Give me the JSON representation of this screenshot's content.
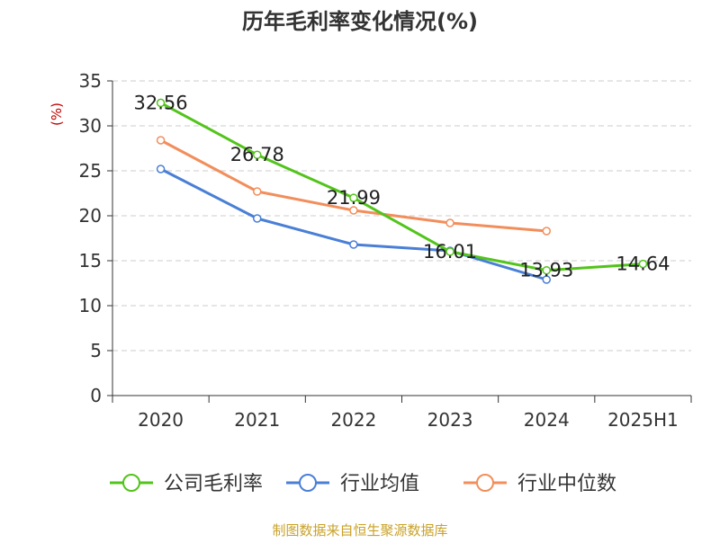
{
  "chart_data": {
    "type": "line",
    "title": "历年毛利率变化情况(%)",
    "ylabel": "(%)",
    "xlabel": "",
    "categories": [
      "2020",
      "2021",
      "2022",
      "2023",
      "2024",
      "2025H1"
    ],
    "ylim": [
      0,
      35
    ],
    "yticks": [
      0,
      5,
      10,
      15,
      20,
      25,
      30,
      35
    ],
    "grid": true,
    "legend_position": "bottom",
    "series": [
      {
        "name": "公司毛利率",
        "color": "#52c41a",
        "values": [
          32.56,
          26.78,
          21.99,
          16.01,
          13.93,
          14.64
        ],
        "labels": [
          "32.56",
          "26.78",
          "21.99",
          "16.01",
          "13.93",
          "14.64"
        ]
      },
      {
        "name": "行业均值",
        "color": "#4a7fd6",
        "values": [
          25.2,
          19.7,
          16.8,
          16.1,
          12.9,
          null
        ]
      },
      {
        "name": "行业中位数",
        "color": "#f28e5b",
        "values": [
          28.4,
          22.7,
          20.6,
          19.2,
          18.3,
          null
        ]
      }
    ],
    "source": "制图数据来自恒生聚源数据库"
  }
}
